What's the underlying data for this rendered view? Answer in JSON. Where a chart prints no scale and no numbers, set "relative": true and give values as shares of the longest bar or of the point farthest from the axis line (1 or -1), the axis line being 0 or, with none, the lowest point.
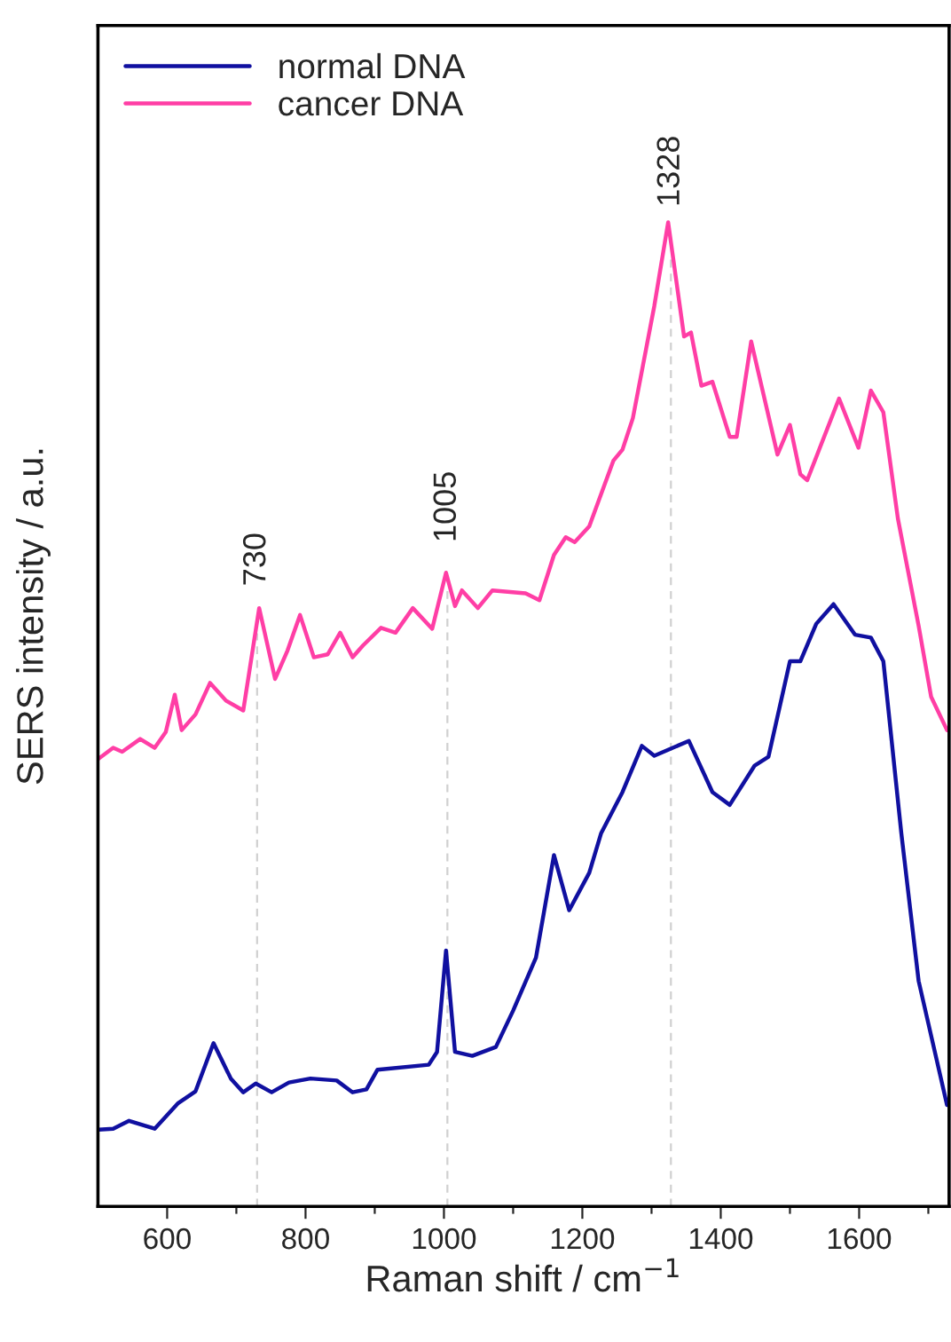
{
  "chart_data": {
    "type": "line",
    "relative": true,
    "xlabel": "Raman shift / cm$^{−1}$",
    "ylabel": "SERS intensity / a.u.",
    "xlim": [
      500,
      1730
    ],
    "xticks": [
      600,
      {
        "value": 700,
        "label": null
      },
      800,
      {
        "value": 900,
        "label": null
      },
      1000,
      {
        "value": 1100,
        "label": null
      },
      1200,
      {
        "value": 1300,
        "label": null
      },
      1400,
      {
        "value": 1500,
        "label": null
      },
      1600,
      {
        "value": 1700,
        "label": null
      }
    ],
    "legend": "top left",
    "grid": false,
    "line_style": "solid",
    "marker": "none",
    "ref_lines": [
      {
        "axis": "x",
        "value": 730,
        "label": "730",
        "color": "#d0d0d0",
        "line_style": "dashed"
      },
      {
        "axis": "x",
        "value": 1005,
        "label": "1005",
        "color": "#d0d0d0",
        "line_style": "dashed"
      },
      {
        "axis": "x",
        "value": 1328,
        "label": "1328",
        "color": "#d0d0d0",
        "line_style": "dashed"
      }
    ],
    "series": [
      {
        "name": "normal DNA",
        "color": "#1010a0",
        "x": [
          501,
          522,
          545,
          582,
          616,
          641,
          667,
          692,
          710,
          728,
          751,
          776,
          807,
          845,
          868,
          888,
          904,
          978,
          990,
          1003,
          1016,
          1041,
          1075,
          1100,
          1133,
          1159,
          1181,
          1210,
          1227,
          1258,
          1286,
          1304,
          1354,
          1388,
          1413,
          1449,
          1469,
          1500,
          1515,
          1538,
          1563,
          1594,
          1617,
          1635,
          1661,
          1686,
          1727
        ],
        "values": [
          0.078,
          0.079,
          0.087,
          0.079,
          0.105,
          0.117,
          0.166,
          0.13,
          0.116,
          0.125,
          0.116,
          0.126,
          0.13,
          0.128,
          0.116,
          0.119,
          0.139,
          0.144,
          0.157,
          0.26,
          0.157,
          0.153,
          0.162,
          0.199,
          0.253,
          0.357,
          0.301,
          0.339,
          0.379,
          0.421,
          0.468,
          0.458,
          0.473,
          0.421,
          0.408,
          0.448,
          0.457,
          0.554,
          0.554,
          0.592,
          0.612,
          0.581,
          0.578,
          0.554,
          0.379,
          0.229,
          0.103
        ]
      },
      {
        "name": "cancer DNA",
        "color": "#ff3ea5",
        "x": [
          501,
          522,
          535,
          561,
          582,
          598,
          611,
          621,
          641,
          662,
          685,
          710,
          733,
          756,
          774,
          792,
          812,
          832,
          850,
          868,
          883,
          909,
          930,
          955,
          983,
          1003,
          1016,
          1026,
          1049,
          1070,
          1118,
          1138,
          1159,
          1176,
          1189,
          1210,
          1245,
          1258,
          1273,
          1304,
          1324,
          1347,
          1357,
          1372,
          1388,
          1413,
          1423,
          1444,
          1482,
          1500,
          1515,
          1525,
          1571,
          1599,
          1617,
          1635,
          1656,
          1686,
          1704,
          1727
        ],
        "values": [
          0.455,
          0.466,
          0.462,
          0.475,
          0.466,
          0.482,
          0.52,
          0.484,
          0.5,
          0.532,
          0.514,
          0.504,
          0.608,
          0.536,
          0.565,
          0.601,
          0.558,
          0.561,
          0.583,
          0.558,
          0.57,
          0.588,
          0.583,
          0.608,
          0.587,
          0.644,
          0.61,
          0.626,
          0.608,
          0.626,
          0.623,
          0.616,
          0.662,
          0.68,
          0.675,
          0.691,
          0.758,
          0.769,
          0.801,
          0.915,
          1.0,
          0.884,
          0.888,
          0.834,
          0.838,
          0.782,
          0.782,
          0.879,
          0.764,
          0.794,
          0.744,
          0.738,
          0.821,
          0.771,
          0.829,
          0.807,
          0.699,
          0.59,
          0.518,
          0.484
        ]
      }
    ]
  }
}
